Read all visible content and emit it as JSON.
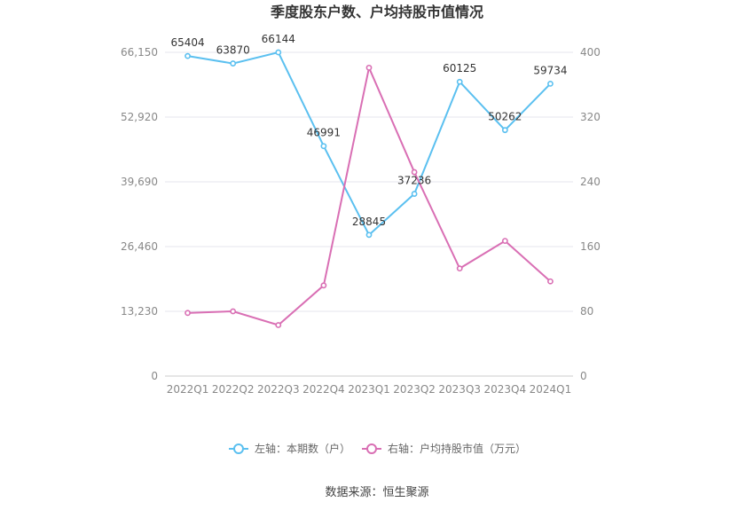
{
  "chart_data": {
    "type": "line",
    "title": "季度股东户数、户均持股市值情况",
    "categories": [
      "2022Q1",
      "2022Q2",
      "2022Q3",
      "2022Q4",
      "2023Q1",
      "2023Q2",
      "2023Q3",
      "2023Q4",
      "2024Q1"
    ],
    "y_left": {
      "ticks": [
        "0",
        "13,230",
        "26,460",
        "39,690",
        "52,920",
        "66,150"
      ],
      "range": [
        0,
        66150
      ]
    },
    "y_right": {
      "ticks": [
        "0",
        "80",
        "160",
        "240",
        "320",
        "400"
      ],
      "range": [
        0,
        400
      ]
    },
    "series": [
      {
        "name": "左轴：本期数（户）",
        "axis": "left",
        "color": "#5bc0f0",
        "values": [
          65404,
          63870,
          66144,
          46991,
          28845,
          37236,
          60125,
          50262,
          59734
        ],
        "labels": [
          "65404",
          "63870",
          "66144",
          "46991",
          "28845",
          "37236",
          "60125",
          "50262",
          "59734"
        ]
      },
      {
        "name": "右轴：户均持股市值（万元）",
        "axis": "right",
        "color": "#d96fb4",
        "values": [
          78,
          80,
          63,
          112,
          381,
          252,
          133,
          167,
          117
        ]
      }
    ],
    "grid": true,
    "legend_position": "bottom",
    "source": "数据来源：恒生聚源"
  }
}
